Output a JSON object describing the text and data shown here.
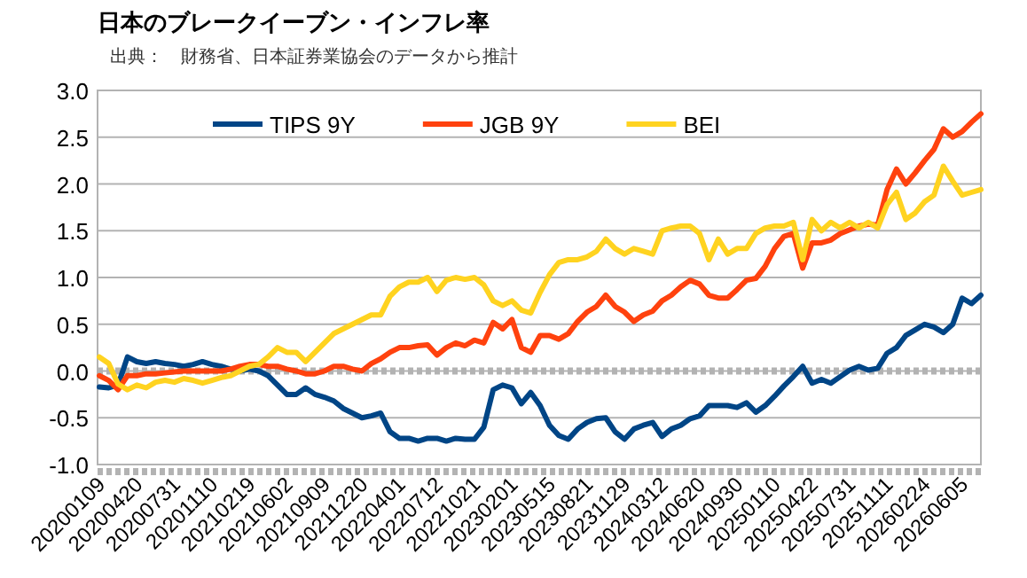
{
  "chart_data": {
    "type": "line",
    "title": "日本のブレークイーブン・インフレ率",
    "annotations": [
      "出典：　財務省、日本証券業協会のデータから推計"
    ],
    "categories": [
      "20200109",
      null,
      null,
      null,
      "20200420",
      null,
      null,
      null,
      "20200731",
      null,
      null,
      null,
      "20201110",
      null,
      null,
      null,
      "20210219",
      null,
      null,
      null,
      "20210602",
      null,
      null,
      null,
      "20210909",
      null,
      null,
      null,
      "20211220",
      null,
      null,
      null,
      "20220401",
      null,
      null,
      null,
      "20220712",
      null,
      null,
      null,
      "20221021",
      null,
      null,
      null,
      "20230201",
      null,
      null,
      null,
      "20230515",
      null,
      null,
      null,
      "20230821",
      null,
      null,
      null,
      "20231129",
      null,
      null,
      null,
      "20240312",
      null,
      null,
      null,
      "20240620",
      null,
      null,
      null,
      "20240930",
      null,
      null,
      null,
      "20250110",
      null,
      null,
      null,
      "20250422",
      null,
      null,
      null,
      "20250731",
      null,
      null,
      null,
      "20251111",
      null,
      null,
      null,
      "20260224",
      null,
      null,
      null,
      "20260605",
      null,
      null
    ],
    "series": [
      {
        "name": "TIPS 9Y",
        "color": "#004586",
        "values": [
          -0.17,
          -0.18,
          -0.15,
          0.15,
          0.1,
          0.08,
          0.1,
          0.08,
          0.07,
          0.05,
          0.07,
          0.1,
          0.07,
          0.05,
          0.02,
          0.0,
          0.02,
          0.0,
          -0.05,
          -0.15,
          -0.25,
          -0.25,
          -0.18,
          -0.25,
          -0.28,
          -0.32,
          -0.4,
          -0.45,
          -0.5,
          -0.48,
          -0.45,
          -0.65,
          -0.72,
          -0.72,
          -0.75,
          -0.72,
          -0.72,
          -0.75,
          -0.72,
          -0.73,
          -0.73,
          -0.6,
          -0.2,
          -0.15,
          -0.18,
          -0.35,
          -0.23,
          -0.37,
          -0.58,
          -0.69,
          -0.73,
          -0.62,
          -0.55,
          -0.51,
          -0.5,
          -0.65,
          -0.73,
          -0.62,
          -0.58,
          -0.55,
          -0.7,
          -0.62,
          -0.58,
          -0.51,
          -0.48,
          -0.37,
          -0.37,
          -0.37,
          -0.39,
          -0.34,
          -0.44,
          -0.37,
          -0.27,
          -0.16,
          -0.06,
          0.05,
          -0.13,
          -0.09,
          -0.13,
          -0.06,
          0.01,
          0.05,
          0.01,
          0.03,
          0.19,
          0.25,
          0.38,
          0.44,
          0.5,
          0.47,
          0.41,
          0.5,
          0.78,
          0.72,
          0.81
        ]
      },
      {
        "name": "JGB 9Y",
        "color": "#ff420e",
        "values": [
          -0.05,
          -0.1,
          -0.2,
          -0.05,
          -0.05,
          -0.03,
          -0.03,
          -0.02,
          -0.01,
          0.0,
          0.0,
          0.0,
          0.0,
          0.0,
          0.02,
          0.05,
          0.07,
          0.07,
          0.05,
          0.05,
          0.02,
          0.0,
          -0.03,
          -0.03,
          0.0,
          0.05,
          0.05,
          0.02,
          0.0,
          0.08,
          0.13,
          0.2,
          0.25,
          0.25,
          0.27,
          0.28,
          0.17,
          0.25,
          0.3,
          0.27,
          0.33,
          0.3,
          0.52,
          0.45,
          0.55,
          0.25,
          0.2,
          0.38,
          0.38,
          0.34,
          0.4,
          0.53,
          0.63,
          0.69,
          0.81,
          0.69,
          0.63,
          0.53,
          0.6,
          0.64,
          0.75,
          0.81,
          0.9,
          0.97,
          0.93,
          0.81,
          0.78,
          0.78,
          0.87,
          0.97,
          0.99,
          1.12,
          1.31,
          1.44,
          1.47,
          1.1,
          1.37,
          1.37,
          1.4,
          1.47,
          1.51,
          1.55,
          1.57,
          1.56,
          1.94,
          2.16,
          2.0,
          2.12,
          2.25,
          2.37,
          2.59,
          2.5,
          2.56,
          2.66,
          2.75
        ]
      },
      {
        "name": "BEI",
        "color": "#ffd320",
        "values": [
          0.15,
          0.08,
          -0.14,
          -0.2,
          -0.15,
          -0.18,
          -0.12,
          -0.1,
          -0.12,
          -0.08,
          -0.1,
          -0.13,
          -0.1,
          -0.07,
          -0.05,
          0.0,
          0.05,
          0.07,
          0.15,
          0.25,
          0.2,
          0.2,
          0.1,
          0.2,
          0.3,
          0.4,
          0.45,
          0.5,
          0.55,
          0.6,
          0.6,
          0.8,
          0.9,
          0.95,
          0.95,
          1.0,
          0.85,
          0.97,
          1.0,
          0.98,
          1.0,
          0.92,
          0.75,
          0.7,
          0.75,
          0.65,
          0.62,
          0.84,
          1.03,
          1.16,
          1.19,
          1.19,
          1.22,
          1.28,
          1.41,
          1.31,
          1.25,
          1.31,
          1.28,
          1.25,
          1.5,
          1.53,
          1.55,
          1.55,
          1.47,
          1.19,
          1.41,
          1.25,
          1.31,
          1.31,
          1.47,
          1.53,
          1.55,
          1.55,
          1.59,
          1.19,
          1.62,
          1.5,
          1.59,
          1.53,
          1.59,
          1.53,
          1.59,
          1.53,
          1.78,
          1.91,
          1.62,
          1.69,
          1.81,
          1.88,
          2.19,
          2.03,
          1.88,
          1.91,
          1.94
        ]
      }
    ],
    "ylim": [
      -1,
      3
    ],
    "yticks": [
      {
        "value": -1,
        "label": "-1.0"
      },
      {
        "value": -0.5,
        "label": "-0.5"
      },
      {
        "value": 0,
        "label": "0.0"
      },
      {
        "value": 0.5,
        "label": "0.5"
      },
      {
        "value": 1,
        "label": "1.0"
      },
      {
        "value": 1.5,
        "label": "1.5"
      },
      {
        "value": 2,
        "label": "2.0"
      },
      {
        "value": 2.5,
        "label": "2.5"
      },
      {
        "value": 3,
        "label": "3.0"
      }
    ],
    "ref_lines": [
      {
        "axis": "y",
        "value": 0,
        "color": "#b3b3b3",
        "line_style": "dotted"
      }
    ],
    "grid": "y",
    "legend": "top",
    "marker": "none",
    "line_style": "solid"
  }
}
